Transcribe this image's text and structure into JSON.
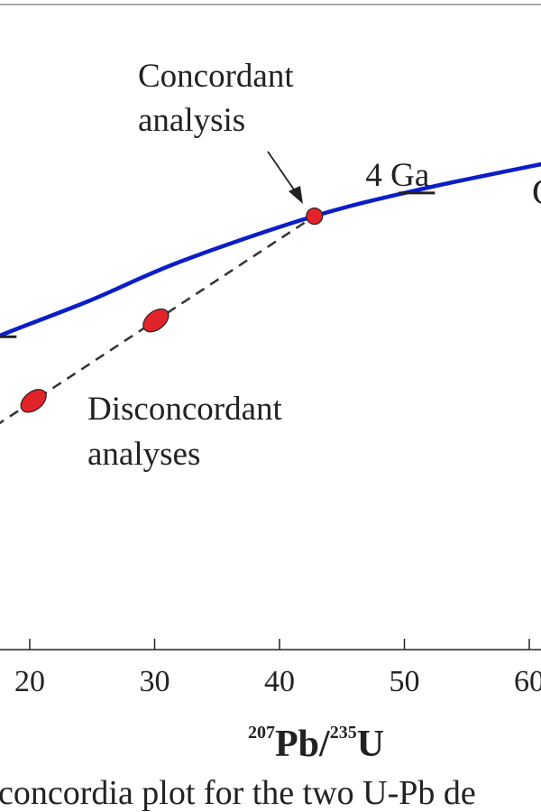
{
  "chart_data": {
    "type": "scatter",
    "xlabel": {
      "mass_a": "207",
      "element_a": "Pb",
      "slash": "/",
      "mass_b": "235",
      "element_b": "U"
    },
    "x_ticks": [
      20,
      30,
      40,
      50,
      60
    ],
    "concordia_age_marks": [
      {
        "label": "4 Ga",
        "x": 51
      },
      {
        "label": "",
        "x": 17.5
      }
    ],
    "concordant_point": {
      "x": 42.8
    },
    "discordant_points": [
      {
        "x": 20.3
      },
      {
        "x": 30.1
      }
    ],
    "annotations": {
      "concordant_line1": "Concordant",
      "concordant_line2": "analysis",
      "discordant_line1": "Disconcordant",
      "discordant_line2": "analyses"
    },
    "colors": {
      "concordia": "#0a1ec8",
      "points": "#e2242a",
      "discordia": "#333333",
      "axis": "#222222",
      "text": "#222222"
    }
  },
  "caption": "concordia plot for the two U-Pb de"
}
